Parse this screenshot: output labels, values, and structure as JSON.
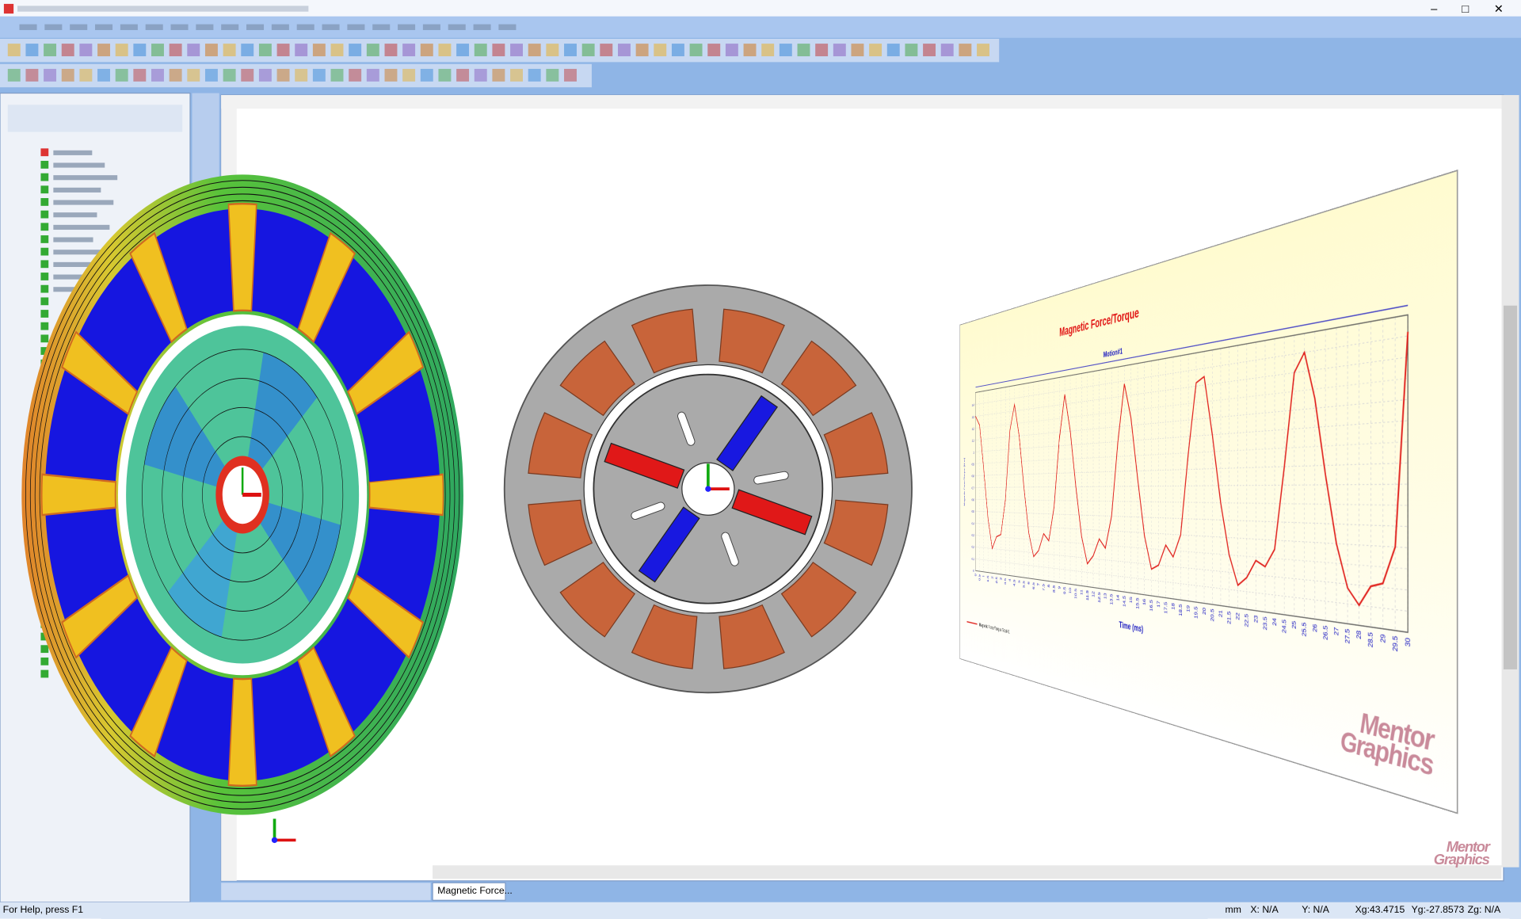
{
  "window": {
    "tab": "Magnetic Force...",
    "status": {
      "help": "For Help, press F1",
      "units": "mm",
      "x": "X: N/A",
      "y": "Y: N/A",
      "xg": "Xg:43.4715",
      "yg": "Yg:-27.8573",
      "zg": "Zg: N/A"
    },
    "watermark": [
      "Mentor",
      "Graphics"
    ]
  },
  "chart_data": {
    "type": "line",
    "title": "Magnetic Force/Torque",
    "subtitle": "Motion#1",
    "x_label": "Time (ms)",
    "y_label": "Magnetic Force/Torque (N.m)",
    "x": [
      0,
      0.5,
      1,
      1.5,
      2,
      2.5,
      3,
      3.5,
      4,
      4.5,
      5,
      5.5,
      6,
      6.5,
      7,
      7.5,
      8,
      8.5,
      9,
      9.5,
      10,
      10.5,
      11,
      11.5,
      12,
      12.5,
      13,
      13.5,
      14,
      14.5,
      15,
      15.5,
      16,
      16.5,
      17,
      17.5,
      18,
      18.5,
      19,
      19.5,
      20,
      20.5,
      21,
      21.5,
      22,
      22.5,
      23,
      23.5,
      24,
      24.5,
      25,
      25.5,
      26,
      26.5,
      27,
      27.5,
      28,
      28.5,
      29,
      29.5,
      30
    ],
    "series": [
      {
        "name": "Magnetic Force/Torque Total#1",
        "color": "#e0201c",
        "values": [
          1.3,
          1.22,
          0.85,
          0.45,
          0.2,
          0.3,
          0.32,
          0.6,
          1.15,
          1.35,
          1.1,
          0.7,
          0.35,
          0.17,
          0.22,
          0.35,
          0.3,
          0.55,
          1.05,
          1.37,
          1.1,
          0.7,
          0.35,
          0.16,
          0.22,
          0.34,
          0.28,
          0.5,
          1.0,
          1.38,
          1.15,
          0.75,
          0.38,
          0.17,
          0.2,
          0.33,
          0.26,
          0.4,
          0.9,
          1.32,
          1.35,
          1.0,
          0.6,
          0.3,
          0.13,
          0.18,
          0.28,
          0.25,
          0.35,
          0.8,
          1.3,
          1.4,
          1.15,
          0.75,
          0.4,
          0.18,
          0.1,
          0.2,
          0.22,
          0.4,
          1.42
        ]
      }
    ],
    "xlim": [
      0,
      30
    ],
    "xticks": [
      0,
      0.5,
      1,
      1.5,
      2,
      2.5,
      3,
      3.5,
      4,
      4.5,
      5,
      5.5,
      6,
      6.5,
      7,
      7.5,
      8,
      8.5,
      9,
      9.5,
      10,
      10.5,
      11,
      11.5,
      12,
      12.5,
      13,
      13.5,
      14,
      14.5,
      15,
      15.5,
      16,
      16.5,
      17,
      17.5,
      18,
      18.5,
      19,
      19.5,
      20,
      20.5,
      21,
      21.5,
      22,
      22.5,
      23,
      23.5,
      24,
      24.5,
      25,
      25.5,
      26,
      26.5,
      27,
      27.5,
      28,
      28.5,
      29,
      29.5,
      30
    ],
    "ylim": [
      0,
      1.5
    ],
    "yticks": [
      0,
      0.1,
      0.2,
      0.3,
      0.4,
      0.5,
      0.6,
      0.7,
      0.8,
      0.9,
      1,
      1.1,
      1.2,
      1.3,
      1.4
    ],
    "grid": true
  }
}
